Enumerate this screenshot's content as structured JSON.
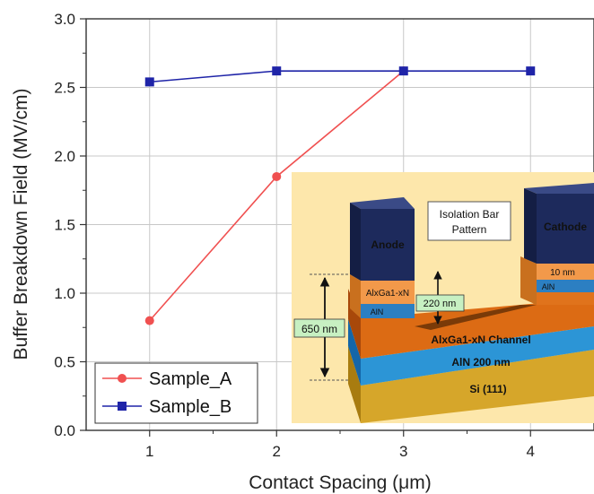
{
  "chart_data": {
    "type": "line",
    "xlabel": "Contact Spacing (μm)",
    "ylabel": "Buffer Breakdown Field (MV/cm)",
    "xlim": [
      0.5,
      4.5
    ],
    "ylim": [
      0.0,
      3.0
    ],
    "x_ticks": [
      "1",
      "2",
      "3",
      "4"
    ],
    "y_ticks": [
      "0.0",
      "0.5",
      "1.0",
      "1.5",
      "2.0",
      "2.5",
      "3.0"
    ],
    "grid": true,
    "legend_position": "bottom-left",
    "series": [
      {
        "name": "Sample_A",
        "color": "#f05050",
        "marker": "circle",
        "x": [
          1,
          2,
          3
        ],
        "y": [
          0.8,
          1.85,
          2.62
        ]
      },
      {
        "name": "Sample_B",
        "color": "#1f24a8",
        "marker": "square",
        "x": [
          1,
          2,
          3,
          4
        ],
        "y": [
          2.54,
          2.62,
          2.62,
          2.62
        ]
      }
    ],
    "inset": {
      "description_labels": {
        "anode": "Anode",
        "cathode": "Cathode",
        "isolation_line1": "Isolation Bar",
        "isolation_line2": "Pattern",
        "algan_left": "AlxGa1-xN",
        "aln_left": "AlN",
        "ten_nm": "10 nm",
        "aln_right": "AlN",
        "thickness_220": "220 nm",
        "thickness_650": "650 nm",
        "channel": "AlxGa1-xN Channel",
        "aln_200": "AlN 200 nm",
        "si": "Si (111)"
      }
    }
  }
}
